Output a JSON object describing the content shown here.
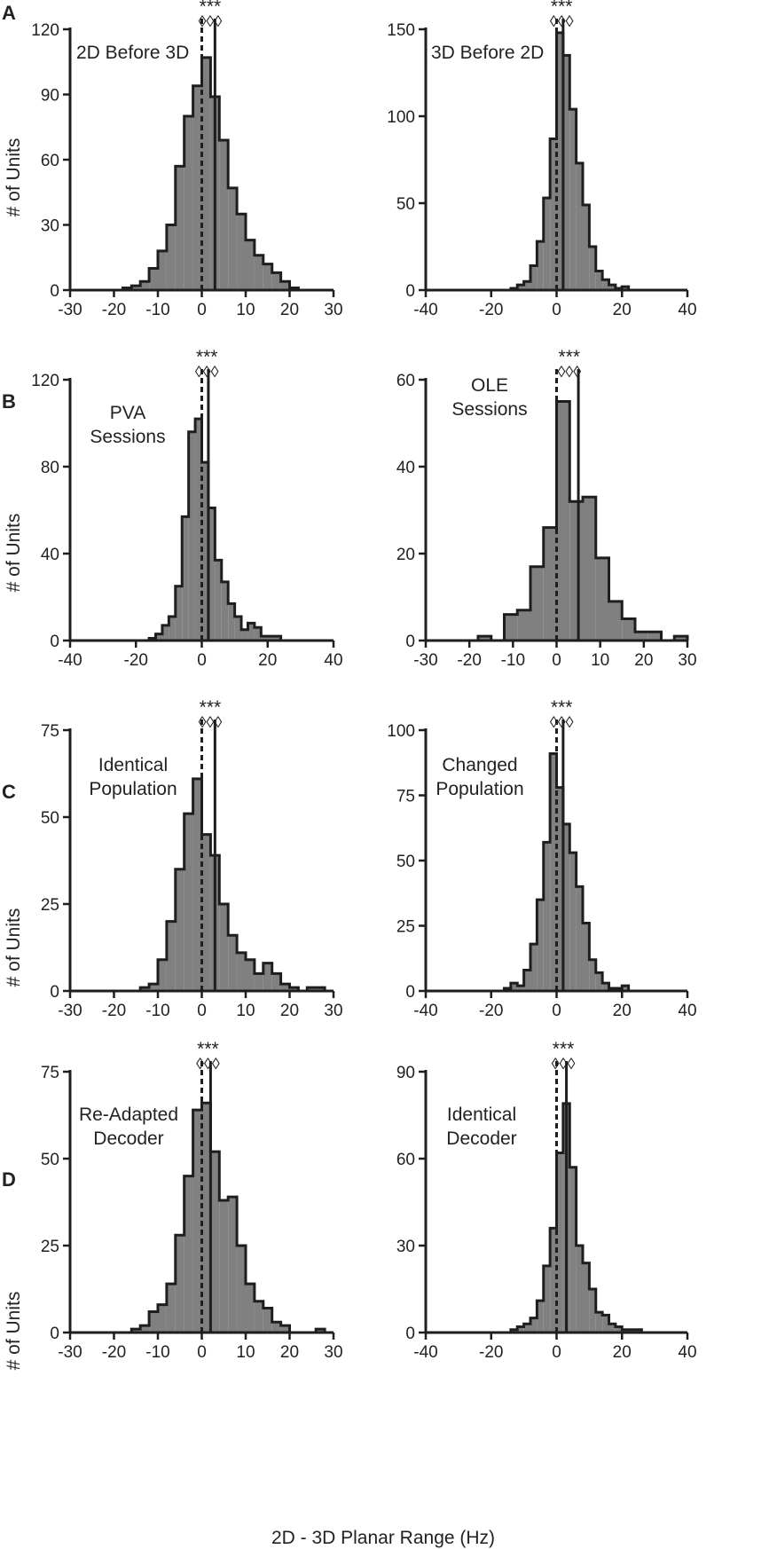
{
  "figure": {
    "shared_xlabel": "2D - 3D Planar Range (Hz)",
    "ylabel": "# of Units",
    "stars": "***",
    "diamonds": "◊◊◊",
    "colors": {
      "bar_fill": "#808080",
      "outline": "#1e1e1e"
    }
  },
  "chart_data": [
    {
      "type": "bar",
      "panel": "A",
      "annotation": [
        "2D Before 3D"
      ],
      "xlim": [
        -30,
        30
      ],
      "xticks": [
        -30,
        -20,
        -10,
        0,
        10,
        20,
        30
      ],
      "ylim": [
        0,
        120
      ],
      "yticks": [
        0,
        30,
        60,
        90,
        120
      ],
      "bin_start": -30,
      "bin_width": 2,
      "values": [
        0,
        0,
        0,
        0,
        0,
        0,
        1,
        2,
        4,
        10,
        18,
        30,
        57,
        80,
        94,
        107,
        89,
        69,
        47,
        35,
        23,
        16,
        12,
        8,
        4,
        1,
        0,
        0,
        0,
        0
      ],
      "median": 3
    },
    {
      "type": "bar",
      "panel": "A",
      "annotation": [
        "3D Before 2D"
      ],
      "xlim": [
        -40,
        40
      ],
      "xticks": [
        -40,
        -20,
        0,
        20,
        40
      ],
      "ylim": [
        0,
        150
      ],
      "yticks": [
        0,
        50,
        100,
        150
      ],
      "bin_start": -40,
      "bin_width": 2,
      "values": [
        0,
        0,
        0,
        0,
        0,
        0,
        0,
        0,
        0,
        0,
        0,
        0,
        0,
        1,
        3,
        5,
        14,
        28,
        53,
        87,
        148,
        135,
        104,
        73,
        49,
        25,
        11,
        6,
        3,
        1,
        2,
        0,
        0,
        0,
        0,
        0,
        0,
        0,
        0,
        0
      ],
      "median": 2
    },
    {
      "type": "bar",
      "panel": "B",
      "annotation": [
        "PVA",
        "Sessions"
      ],
      "xlim": [
        -40,
        40
      ],
      "xticks": [
        -40,
        -20,
        0,
        20,
        40
      ],
      "ylim": [
        0,
        120
      ],
      "yticks": [
        0,
        40,
        80,
        120
      ],
      "bin_start": -40,
      "bin_width": 2,
      "values": [
        0,
        0,
        0,
        0,
        0,
        0,
        0,
        0,
        0,
        0,
        0,
        0,
        1,
        3,
        7,
        11,
        25,
        57,
        96,
        102,
        82,
        61,
        37,
        27,
        17,
        11,
        5,
        8,
        6,
        2,
        2,
        2,
        0,
        0,
        0,
        0,
        0,
        0,
        0,
        0
      ],
      "median": 2
    },
    {
      "type": "bar",
      "panel": "B",
      "annotation": [
        "OLE",
        "Sessions"
      ],
      "xlim": [
        -30,
        30
      ],
      "xticks": [
        -30,
        -20,
        -10,
        0,
        10,
        20,
        30
      ],
      "ylim": [
        0,
        60
      ],
      "yticks": [
        0,
        20,
        40,
        60
      ],
      "bin_start": -30,
      "bin_width": 3,
      "values": [
        0,
        0,
        0,
        0,
        1,
        0,
        6,
        7,
        17,
        26,
        55,
        32,
        33,
        19,
        9,
        5,
        2,
        2,
        0,
        1
      ],
      "median": 5
    },
    {
      "type": "bar",
      "panel": "C",
      "annotation": [
        "Identical",
        "Population"
      ],
      "xlim": [
        -30,
        30
      ],
      "xticks": [
        -30,
        -20,
        -10,
        0,
        10,
        20,
        30
      ],
      "ylim": [
        0,
        75
      ],
      "yticks": [
        0,
        25,
        50,
        75
      ],
      "bin_start": -30,
      "bin_width": 2,
      "values": [
        0,
        0,
        0,
        0,
        0,
        0,
        0,
        0,
        1,
        2,
        9,
        20,
        35,
        51,
        61,
        45,
        39,
        25,
        16,
        11,
        9,
        5,
        8,
        5,
        2,
        1,
        0,
        1,
        1,
        0
      ],
      "median": 3
    },
    {
      "type": "bar",
      "panel": "C",
      "annotation": [
        "Changed",
        "Population"
      ],
      "xlim": [
        -40,
        40
      ],
      "xticks": [
        -40,
        -20,
        0,
        20,
        40
      ],
      "ylim": [
        0,
        100
      ],
      "yticks": [
        0,
        25,
        50,
        75,
        100
      ],
      "bin_start": -40,
      "bin_width": 2,
      "values": [
        0,
        0,
        0,
        0,
        0,
        0,
        0,
        0,
        0,
        0,
        0,
        0,
        1,
        3,
        2,
        8,
        18,
        35,
        57,
        91,
        78,
        64,
        53,
        40,
        26,
        12,
        7,
        3,
        1,
        1,
        2,
        0,
        0,
        0,
        0,
        0,
        0,
        0,
        0,
        0
      ],
      "median": 2
    },
    {
      "type": "bar",
      "panel": "D",
      "annotation": [
        "Re-Adapted",
        "Decoder"
      ],
      "xlim": [
        -30,
        30
      ],
      "xticks": [
        -30,
        -20,
        -10,
        0,
        10,
        20,
        30
      ],
      "ylim": [
        0,
        75
      ],
      "yticks": [
        0,
        25,
        50,
        75
      ],
      "bin_start": -30,
      "bin_width": 2,
      "values": [
        0,
        0,
        0,
        0,
        0,
        0,
        0,
        1,
        2,
        6,
        8,
        14,
        28,
        45,
        64,
        66,
        52,
        38,
        39,
        25,
        14,
        9,
        7,
        3,
        2,
        0,
        0,
        0,
        1,
        0
      ],
      "median": 2
    },
    {
      "type": "bar",
      "panel": "D",
      "annotation": [
        "Identical",
        "Decoder"
      ],
      "xlim": [
        -40,
        40
      ],
      "xticks": [
        -40,
        -20,
        0,
        20,
        40
      ],
      "ylim": [
        0,
        90
      ],
      "yticks": [
        0,
        30,
        60,
        90
      ],
      "bin_start": -40,
      "bin_width": 2,
      "values": [
        0,
        0,
        0,
        0,
        0,
        0,
        0,
        0,
        0,
        0,
        0,
        0,
        0,
        1,
        2,
        3,
        5,
        11,
        23,
        36,
        62,
        79,
        57,
        30,
        24,
        15,
        7,
        6,
        3,
        2,
        1,
        1,
        1,
        0,
        0,
        0,
        0,
        0,
        0,
        0
      ],
      "median": 3
    }
  ]
}
